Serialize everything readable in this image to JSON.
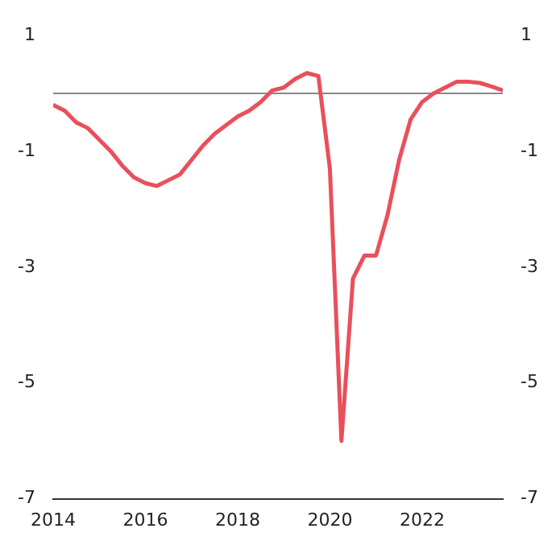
{
  "chart_data": {
    "type": "line",
    "x": [
      2014,
      2014.25,
      2014.5,
      2014.75,
      2015,
      2015.25,
      2015.5,
      2015.75,
      2016,
      2016.25,
      2016.5,
      2016.75,
      2017,
      2017.25,
      2017.5,
      2017.75,
      2018,
      2018.25,
      2018.5,
      2018.75,
      2019,
      2019.25,
      2019.5,
      2019.75,
      2020,
      2020.25,
      2020.5,
      2020.75,
      2021,
      2021.25,
      2021.5,
      2021.75,
      2022,
      2022.25,
      2022.5,
      2022.75,
      2023,
      2023.25,
      2023.5,
      2023.75
    ],
    "series": [
      {
        "color": "#e8505b",
        "values": [
          -0.2,
          -0.3,
          -0.5,
          -0.6,
          -0.8,
          -1.0,
          -1.25,
          -1.45,
          -1.55,
          -1.6,
          -1.5,
          -1.4,
          -1.15,
          -0.9,
          -0.7,
          -0.55,
          -0.4,
          -0.3,
          -0.15,
          0.05,
          0.1,
          0.25,
          0.35,
          0.3,
          -1.3,
          -6.0,
          -3.2,
          -2.8,
          -2.8,
          -2.1,
          -1.15,
          -0.45,
          -0.15,
          0.0,
          0.1,
          0.2,
          0.2,
          0.18,
          0.12,
          0.05
        ]
      }
    ],
    "xlim": [
      2014,
      2023.75
    ],
    "xticks": [
      2014,
      2016,
      2018,
      2020,
      2022
    ],
    "ylim": [
      -7,
      1
    ],
    "yticks": [
      -7,
      -5,
      -3,
      -1,
      1
    ],
    "y2lim": [
      -7,
      1
    ],
    "y2ticks": [
      -7,
      -5,
      -3,
      -1,
      1
    ],
    "ref_lines": [
      {
        "axis": "y",
        "value": 0,
        "color": "#888888"
      }
    ],
    "grid": false,
    "legend": false,
    "marker": "none",
    "line_style": "solid"
  }
}
